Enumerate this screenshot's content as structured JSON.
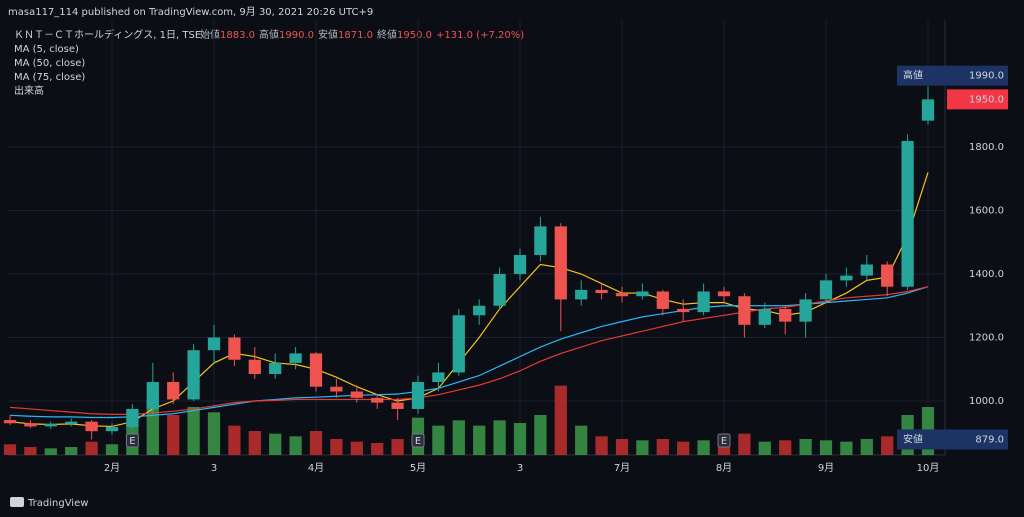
{
  "header": {
    "published": "masa117_114 published on TradingView.com, 9月 30, 2021 20:26 UTC+9",
    "symbol": "ＫＮＴ－ＣＴホールディングス, 1日, TSE",
    "ohlc": [
      {
        "label": "始値",
        "value": "1883.0"
      },
      {
        "label": "高値",
        "value": "1990.0"
      },
      {
        "label": "安値",
        "value": "1871.0"
      },
      {
        "label": "終値",
        "value": "1950.0"
      }
    ],
    "change": "+131.0 (+7.20%)"
  },
  "chart_data": {
    "type": "candlestick",
    "categories": [
      null,
      null,
      null,
      null,
      null,
      "2月",
      null,
      null,
      null,
      null,
      "3",
      null,
      null,
      null,
      null,
      "4月",
      null,
      null,
      null,
      null,
      "5月",
      null,
      null,
      null,
      null,
      "3",
      null,
      null,
      null,
      null,
      "7月",
      null,
      null,
      null,
      null,
      "8月",
      null,
      null,
      null,
      null,
      "9月",
      null,
      null,
      null,
      null,
      "10月"
    ],
    "open": [
      940,
      930,
      920,
      928,
      935,
      905,
      918,
      975,
      1060,
      1005,
      1160,
      1200,
      1130,
      1085,
      1120,
      1150,
      1045,
      1030,
      1010,
      995,
      975,
      1060,
      1090,
      1270,
      1300,
      1400,
      1460,
      1550,
      1320,
      1350,
      1340,
      1330,
      1345,
      1290,
      1280,
      1345,
      1330,
      1240,
      1290,
      1250,
      1320,
      1380,
      1395,
      1430,
      1360,
      1883
    ],
    "high": [
      955,
      940,
      935,
      945,
      940,
      930,
      990,
      1120,
      1090,
      1180,
      1240,
      1210,
      1170,
      1150,
      1170,
      1155,
      1070,
      1050,
      1020,
      1010,
      1080,
      1120,
      1290,
      1320,
      1420,
      1480,
      1580,
      1560,
      1380,
      1370,
      1360,
      1370,
      1350,
      1320,
      1370,
      1360,
      1340,
      1310,
      1300,
      1340,
      1400,
      1420,
      1460,
      1440,
      1840,
      1990
    ],
    "low": [
      925,
      915,
      912,
      920,
      879,
      895,
      910,
      960,
      990,
      1000,
      1120,
      1110,
      1070,
      1070,
      1100,
      1030,
      1010,
      995,
      975,
      940,
      960,
      1030,
      1080,
      1240,
      1290,
      1380,
      1440,
      1220,
      1300,
      1320,
      1310,
      1320,
      1270,
      1250,
      1270,
      1310,
      1200,
      1230,
      1210,
      1200,
      1310,
      1360,
      1380,
      1330,
      1350,
      1871
    ],
    "close": [
      930,
      920,
      928,
      935,
      905,
      918,
      975,
      1060,
      1005,
      1160,
      1200,
      1130,
      1085,
      1120,
      1150,
      1045,
      1030,
      1010,
      995,
      975,
      1060,
      1090,
      1270,
      1300,
      1400,
      1460,
      1550,
      1320,
      1350,
      1340,
      1330,
      1345,
      1290,
      1280,
      1345,
      1330,
      1240,
      1290,
      1250,
      1320,
      1380,
      1395,
      1430,
      1360,
      1819,
      1950
    ],
    "up_color": "#26a69a",
    "down_color": "#ef5350",
    "volume": {
      "name": "出来高",
      "up_color": "#3d9a4a",
      "down_color": "#c62f2f",
      "values": [
        40,
        30,
        25,
        30,
        50,
        40,
        120,
        220,
        150,
        180,
        160,
        110,
        90,
        80,
        70,
        90,
        60,
        50,
        45,
        60,
        140,
        110,
        130,
        110,
        130,
        120,
        150,
        260,
        110,
        70,
        60,
        55,
        60,
        50,
        55,
        45,
        80,
        50,
        55,
        60,
        55,
        50,
        60,
        70,
        150,
        180
      ]
    },
    "series": [
      {
        "name": "MA (5, close)",
        "color": "#f5c518",
        "values": [
          935,
          928,
          926,
          928,
          922,
          920,
          935,
          975,
          1000,
          1060,
          1120,
          1150,
          1140,
          1120,
          1115,
          1100,
          1075,
          1045,
          1020,
          1000,
          1010,
          1040,
          1120,
          1200,
          1290,
          1360,
          1430,
          1420,
          1400,
          1370,
          1340,
          1340,
          1320,
          1305,
          1310,
          1310,
          1290,
          1285,
          1270,
          1280,
          1310,
          1340,
          1380,
          1390,
          1520,
          1720
        ]
      },
      {
        "name": "MA (50, close)",
        "color": "#29b6f6",
        "values": [
          955,
          952,
          950,
          950,
          948,
          948,
          950,
          955,
          960,
          970,
          980,
          990,
          1000,
          1005,
          1010,
          1012,
          1015,
          1018,
          1020,
          1022,
          1030,
          1040,
          1060,
          1080,
          1110,
          1140,
          1170,
          1195,
          1215,
          1235,
          1250,
          1265,
          1275,
          1285,
          1295,
          1300,
          1300,
          1300,
          1300,
          1305,
          1310,
          1315,
          1320,
          1325,
          1340,
          1360
        ]
      },
      {
        "name": "MA (75, close)",
        "color": "#e53935",
        "values": [
          980,
          975,
          970,
          965,
          960,
          958,
          958,
          962,
          968,
          975,
          985,
          995,
          1000,
          1002,
          1005,
          1005,
          1005,
          1005,
          1005,
          1005,
          1010,
          1020,
          1035,
          1050,
          1070,
          1095,
          1125,
          1150,
          1170,
          1190,
          1205,
          1220,
          1235,
          1250,
          1260,
          1270,
          1280,
          1290,
          1295,
          1305,
          1315,
          1325,
          1330,
          1335,
          1345,
          1360
        ]
      }
    ],
    "ylim": [
      830,
      2200
    ],
    "yticks": [
      {
        "value": 1000,
        "label": "1000.0"
      },
      {
        "value": 1200,
        "label": "1200.0"
      },
      {
        "value": 1400,
        "label": "1400.0"
      },
      {
        "value": 1600,
        "label": "1600.0"
      },
      {
        "value": 1800,
        "label": "1800.0"
      }
    ],
    "vlim": [
      0,
      300
    ],
    "grid": true,
    "badges": [
      {
        "label": "高値",
        "value": 1990,
        "text": "1990.0",
        "color": "#1c3364"
      },
      {
        "value": 1950,
        "text": "1950.0",
        "color": "#f23645"
      },
      {
        "label": "安値",
        "value": 879,
        "text": "879.0",
        "color": "#1c3364"
      }
    ],
    "events": [
      {
        "x": 6,
        "label": "E"
      },
      {
        "x": 20,
        "label": "E"
      },
      {
        "x": 35,
        "label": "E"
      }
    ]
  },
  "footer": "TradingView"
}
